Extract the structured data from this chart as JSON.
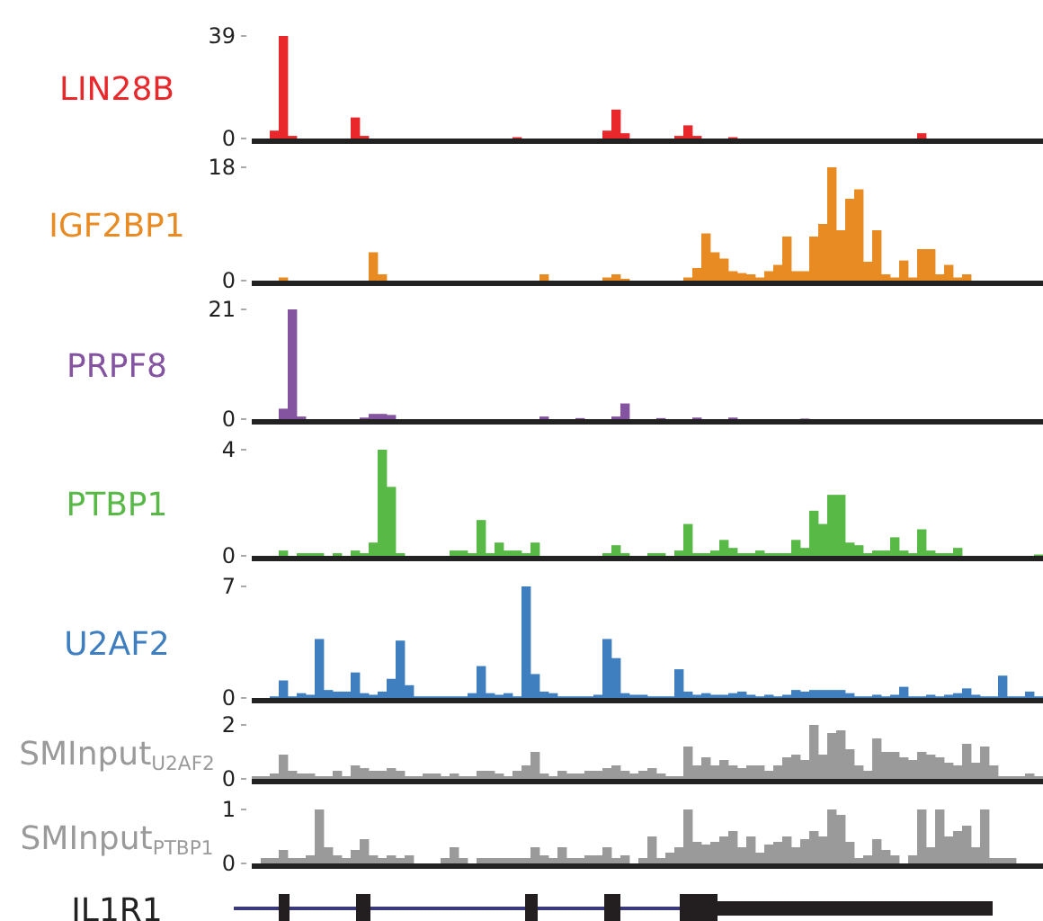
{
  "chart_data": [
    {
      "type": "bar",
      "title": "LIN28B",
      "tick_labels": "y",
      "categories": [
        null,
        null,
        null,
        null,
        null,
        null,
        null,
        null,
        null,
        null,
        null,
        null,
        null,
        null,
        null,
        null,
        null,
        null,
        null,
        null,
        null,
        null,
        null,
        null,
        null,
        null,
        null,
        null,
        null,
        null,
        null,
        null,
        null,
        null,
        null,
        null,
        null,
        null,
        null,
        null,
        null,
        null,
        null,
        null,
        null,
        null,
        null,
        null,
        null,
        null,
        null,
        null,
        null,
        null,
        null,
        null,
        null,
        null,
        null,
        null,
        null,
        null,
        null,
        null,
        null,
        null,
        null,
        null,
        null,
        null,
        null,
        null,
        null,
        null,
        null,
        null,
        null,
        null,
        null,
        null,
        null,
        null,
        null,
        null,
        null,
        null,
        null,
        null
      ],
      "ylim": [
        0,
        39
      ],
      "yticks": [
        0,
        39
      ],
      "color": "#e8282b",
      "values": [
        0,
        0,
        3,
        39,
        1,
        0,
        0,
        0,
        0,
        0,
        0,
        8,
        1,
        0,
        0,
        0,
        0,
        0,
        0,
        0,
        0,
        0,
        0,
        0,
        0,
        0,
        0,
        0,
        0,
        0.5,
        0,
        0,
        0,
        0,
        0,
        0,
        0,
        0,
        0,
        3,
        11,
        2,
        0,
        0,
        0,
        0,
        0,
        1,
        5,
        1,
        0,
        0,
        0,
        0.5,
        0,
        0,
        0,
        0,
        0,
        0,
        0,
        0,
        0,
        0,
        0,
        0,
        0,
        0,
        0,
        0,
        0,
        0,
        0,
        0,
        2,
        0,
        0,
        0,
        0,
        0,
        0,
        0,
        0,
        0,
        0,
        0,
        0,
        0
      ]
    },
    {
      "type": "bar",
      "title": "IGF2BP1",
      "tick_labels": "y",
      "categories": [
        null,
        null,
        null,
        null,
        null,
        null,
        null,
        null,
        null,
        null,
        null,
        null,
        null,
        null,
        null,
        null,
        null,
        null,
        null,
        null,
        null,
        null,
        null,
        null,
        null,
        null,
        null,
        null,
        null,
        null,
        null,
        null,
        null,
        null,
        null,
        null,
        null,
        null,
        null,
        null,
        null,
        null,
        null,
        null,
        null,
        null,
        null,
        null,
        null,
        null,
        null,
        null,
        null,
        null,
        null,
        null,
        null,
        null,
        null,
        null,
        null,
        null,
        null,
        null,
        null,
        null,
        null,
        null,
        null,
        null,
        null,
        null,
        null,
        null,
        null,
        null,
        null,
        null,
        null,
        null,
        null,
        null,
        null,
        null,
        null,
        null,
        null,
        null
      ],
      "ylim": [
        0,
        18
      ],
      "yticks": [
        0,
        18
      ],
      "color": "#e88b23",
      "values": [
        0,
        0,
        0,
        0.5,
        0,
        0,
        0,
        0,
        0,
        0,
        0,
        0,
        0,
        4.5,
        1,
        0,
        0,
        0,
        0,
        0,
        0,
        0,
        0,
        0,
        0,
        0,
        0,
        0,
        0,
        0,
        0,
        0,
        1,
        0,
        0,
        0,
        0,
        0,
        0,
        0.5,
        1,
        0.3,
        0,
        0,
        0,
        0,
        0,
        0,
        0.5,
        2,
        7.5,
        4.5,
        3.5,
        1.5,
        1.2,
        1,
        0.5,
        1.5,
        2.5,
        7,
        1.5,
        1.5,
        7,
        9,
        18,
        8,
        13,
        14.5,
        3,
        8,
        1,
        0.5,
        3.2,
        0.5,
        5,
        5,
        1,
        2.5,
        0.5,
        1,
        0,
        0,
        0,
        0,
        0,
        0,
        0,
        0
      ]
    },
    {
      "type": "bar",
      "title": "PRPF8",
      "tick_labels": "y",
      "categories": [
        null,
        null,
        null,
        null,
        null,
        null,
        null,
        null,
        null,
        null,
        null,
        null,
        null,
        null,
        null,
        null,
        null,
        null,
        null,
        null,
        null,
        null,
        null,
        null,
        null,
        null,
        null,
        null,
        null,
        null,
        null,
        null,
        null,
        null,
        null,
        null,
        null,
        null,
        null,
        null,
        null,
        null,
        null,
        null,
        null,
        null,
        null,
        null,
        null,
        null,
        null,
        null,
        null,
        null,
        null,
        null,
        null,
        null,
        null,
        null,
        null,
        null,
        null,
        null,
        null,
        null,
        null,
        null,
        null,
        null,
        null,
        null,
        null,
        null,
        null,
        null,
        null,
        null,
        null,
        null,
        null,
        null,
        null,
        null,
        null,
        null,
        null,
        null
      ],
      "ylim": [
        0,
        21
      ],
      "yticks": [
        0,
        21
      ],
      "color": "#8454a0",
      "values": [
        0,
        0,
        0,
        2,
        21,
        0.5,
        0,
        0,
        0,
        0,
        0,
        0,
        0.3,
        1,
        1,
        0.8,
        0,
        0,
        0,
        0,
        0,
        0,
        0,
        0,
        0,
        0,
        0,
        0,
        0,
        0,
        0,
        0,
        0.5,
        0,
        0,
        0,
        0.2,
        0,
        0,
        0,
        0.5,
        3,
        0,
        0,
        0,
        0.2,
        0,
        0,
        0,
        0.3,
        0,
        0,
        0,
        0.3,
        0,
        0,
        0,
        0,
        0,
        0,
        0,
        0.1,
        0,
        0,
        0,
        0,
        0,
        0,
        0,
        0,
        0,
        0,
        0,
        0,
        0,
        0,
        0,
        0,
        0,
        0,
        0,
        0,
        0,
        0,
        0,
        0,
        0,
        0
      ]
    },
    {
      "type": "bar",
      "title": "PTBP1",
      "tick_labels": "y",
      "categories": [
        null,
        null,
        null,
        null,
        null,
        null,
        null,
        null,
        null,
        null,
        null,
        null,
        null,
        null,
        null,
        null,
        null,
        null,
        null,
        null,
        null,
        null,
        null,
        null,
        null,
        null,
        null,
        null,
        null,
        null,
        null,
        null,
        null,
        null,
        null,
        null,
        null,
        null,
        null,
        null,
        null,
        null,
        null,
        null,
        null,
        null,
        null,
        null,
        null,
        null,
        null,
        null,
        null,
        null,
        null,
        null,
        null,
        null,
        null,
        null,
        null,
        null,
        null,
        null,
        null,
        null,
        null,
        null,
        null,
        null,
        null,
        null,
        null,
        null,
        null,
        null,
        null,
        null,
        null,
        null,
        null,
        null,
        null,
        null,
        null,
        null,
        null,
        null
      ],
      "ylim": [
        0,
        4
      ],
      "yticks": [
        0,
        4
      ],
      "color": "#58b947",
      "values": [
        0,
        0,
        0,
        0.2,
        0,
        0.1,
        0.1,
        0.1,
        0,
        0.1,
        0,
        0.2,
        0.1,
        0.5,
        4,
        2.6,
        0.1,
        0,
        0,
        0,
        0,
        0,
        0.2,
        0.2,
        0.1,
        1.35,
        0.1,
        0.5,
        0.2,
        0.2,
        0.1,
        0.5,
        0,
        0,
        0,
        0,
        0,
        0,
        0,
        0.1,
        0.4,
        0.1,
        0,
        0,
        0.1,
        0.1,
        0,
        0.2,
        1.2,
        0.1,
        0.1,
        0.2,
        0.6,
        0.3,
        0.1,
        0.1,
        0.2,
        0.1,
        0.1,
        0.1,
        0.6,
        0.3,
        1.7,
        1.2,
        2.3,
        2.3,
        0.5,
        0.4,
        0.1,
        0.2,
        0.2,
        0.7,
        0.2,
        0.1,
        1,
        0.2,
        0.1,
        0.1,
        0.3,
        0,
        0,
        0,
        0,
        0,
        0,
        0,
        0,
        0.05
      ]
    },
    {
      "type": "bar",
      "title": "U2AF2",
      "tick_labels": "y",
      "categories": [
        null,
        null,
        null,
        null,
        null,
        null,
        null,
        null,
        null,
        null,
        null,
        null,
        null,
        null,
        null,
        null,
        null,
        null,
        null,
        null,
        null,
        null,
        null,
        null,
        null,
        null,
        null,
        null,
        null,
        null,
        null,
        null,
        null,
        null,
        null,
        null,
        null,
        null,
        null,
        null,
        null,
        null,
        null,
        null,
        null,
        null,
        null,
        null,
        null,
        null,
        null,
        null,
        null,
        null,
        null,
        null,
        null,
        null,
        null,
        null,
        null,
        null,
        null,
        null,
        null,
        null,
        null,
        null,
        null,
        null,
        null,
        null,
        null,
        null,
        null,
        null,
        null,
        null,
        null,
        null,
        null,
        null,
        null,
        null,
        null,
        null,
        null,
        null
      ],
      "ylim": [
        0,
        7
      ],
      "yticks": [
        0,
        7
      ],
      "color": "#3f7fc0",
      "values": [
        0,
        0,
        0.1,
        1.1,
        0.1,
        0.3,
        0.2,
        3.7,
        0.5,
        0.4,
        0.4,
        1.6,
        0.3,
        0.2,
        0.4,
        1.2,
        3.6,
        0.8,
        0.1,
        0.1,
        0.1,
        0.1,
        0.1,
        0.1,
        0.3,
        2,
        0.3,
        0.2,
        0.3,
        0.1,
        7,
        1.5,
        0.4,
        0.3,
        0.1,
        0.1,
        0.1,
        0.1,
        0.2,
        3.7,
        2.5,
        0.3,
        0.2,
        0.2,
        0.1,
        0.1,
        0.1,
        1.8,
        0.4,
        0.2,
        0.3,
        0.2,
        0.2,
        0.3,
        0.4,
        0.2,
        0.1,
        0.2,
        0.1,
        0.2,
        0.5,
        0.4,
        0.5,
        0.5,
        0.5,
        0.5,
        0.3,
        0.1,
        0.1,
        0.2,
        0.1,
        0.2,
        0.7,
        0.1,
        0.1,
        0.2,
        0.1,
        0.2,
        0.3,
        0.6,
        0.2,
        0.1,
        0.1,
        1.4,
        0.1,
        0.1,
        0.4,
        0.1
      ]
    },
    {
      "type": "bar",
      "title": "SMInput$_{U2AF2}$",
      "tick_labels": "y",
      "categories": [
        null,
        null,
        null,
        null,
        null,
        null,
        null,
        null,
        null,
        null,
        null,
        null,
        null,
        null,
        null,
        null,
        null,
        null,
        null,
        null,
        null,
        null,
        null,
        null,
        null,
        null,
        null,
        null,
        null,
        null,
        null,
        null,
        null,
        null,
        null,
        null,
        null,
        null,
        null,
        null,
        null,
        null,
        null,
        null,
        null,
        null,
        null,
        null,
        null,
        null,
        null,
        null,
        null,
        null,
        null,
        null,
        null,
        null,
        null,
        null,
        null,
        null,
        null,
        null,
        null,
        null,
        null,
        null,
        null,
        null,
        null,
        null,
        null,
        null,
        null,
        null,
        null,
        null,
        null,
        null,
        null,
        null,
        null,
        null,
        null,
        null,
        null,
        null
      ],
      "ylim": [
        0,
        2
      ],
      "yticks": [
        0,
        2
      ],
      "color": "#9a9a9a",
      "values": [
        0.1,
        0.1,
        0.2,
        0.9,
        0.3,
        0.2,
        0.2,
        0.1,
        0.1,
        0.3,
        0.1,
        0.5,
        0.4,
        0.3,
        0.3,
        0.4,
        0.3,
        0.1,
        0.1,
        0.2,
        0.2,
        0.1,
        0.2,
        0.1,
        0.1,
        0.3,
        0.3,
        0.2,
        0.1,
        0.3,
        0.5,
        1,
        0.2,
        0.1,
        0.3,
        0.2,
        0.2,
        0.3,
        0.3,
        0.4,
        0.5,
        0.3,
        0.2,
        0.3,
        0.4,
        0.2,
        0.1,
        0.1,
        1.2,
        0.5,
        0.8,
        0.5,
        0.7,
        0.5,
        0.4,
        0.5,
        0.5,
        0.3,
        0.5,
        0.8,
        0.9,
        0.7,
        2,
        0.9,
        1.7,
        1.8,
        1.1,
        0.5,
        0.3,
        1.5,
        1,
        1,
        0.8,
        0.7,
        1,
        0.9,
        0.8,
        0.6,
        0.5,
        1.3,
        0.6,
        1.2,
        0.5,
        0.1,
        0.1,
        0.1,
        0.2,
        0.1
      ]
    },
    {
      "type": "bar",
      "title": "SMInput$_{PTBP1}$",
      "tick_labels": "y",
      "categories": [
        null,
        null,
        null,
        null,
        null,
        null,
        null,
        null,
        null,
        null,
        null,
        null,
        null,
        null,
        null,
        null,
        null,
        null,
        null,
        null,
        null,
        null,
        null,
        null,
        null,
        null,
        null,
        null,
        null,
        null,
        null,
        null,
        null,
        null,
        null,
        null,
        null,
        null,
        null,
        null,
        null,
        null,
        null,
        null,
        null,
        null,
        null,
        null,
        null,
        null,
        null,
        null,
        null,
        null,
        null,
        null,
        null,
        null,
        null,
        null,
        null,
        null,
        null,
        null,
        null,
        null,
        null,
        null,
        null,
        null,
        null,
        null,
        null,
        null,
        null,
        null,
        null,
        null,
        null,
        null,
        null,
        null,
        null,
        null,
        null,
        null,
        null,
        null
      ],
      "ylim": [
        0,
        1
      ],
      "yticks": [
        0,
        1
      ],
      "color": "#9a9a9a",
      "values": [
        0,
        0.1,
        0.1,
        0.25,
        0.1,
        0.1,
        0.15,
        1,
        0.3,
        0.15,
        0.1,
        0.25,
        0.45,
        0.15,
        0.1,
        0.15,
        0.1,
        0.15,
        0,
        0,
        0,
        0.1,
        0.3,
        0.1,
        0,
        0.1,
        0.1,
        0.1,
        0.1,
        0.1,
        0.1,
        0.3,
        0.15,
        0.1,
        0.3,
        0.1,
        0.1,
        0.15,
        0.15,
        0.3,
        0.1,
        0.15,
        0,
        0.1,
        0.5,
        0.1,
        0.2,
        0.3,
        1,
        0.4,
        0.35,
        0.4,
        0.5,
        0.6,
        0.3,
        0.5,
        0.2,
        0.35,
        0.4,
        0.5,
        0.3,
        0.45,
        0.6,
        0.5,
        1,
        0.9,
        0.4,
        0.1,
        0.15,
        0.45,
        0.25,
        0.15,
        0,
        0.15,
        1,
        0.3,
        1,
        0.5,
        0.6,
        0.7,
        0.3,
        1,
        0.1,
        0.1,
        0.1,
        0,
        0,
        0
      ]
    },
    {
      "type": "other",
      "title": "IL1R1"
    }
  ]
}
